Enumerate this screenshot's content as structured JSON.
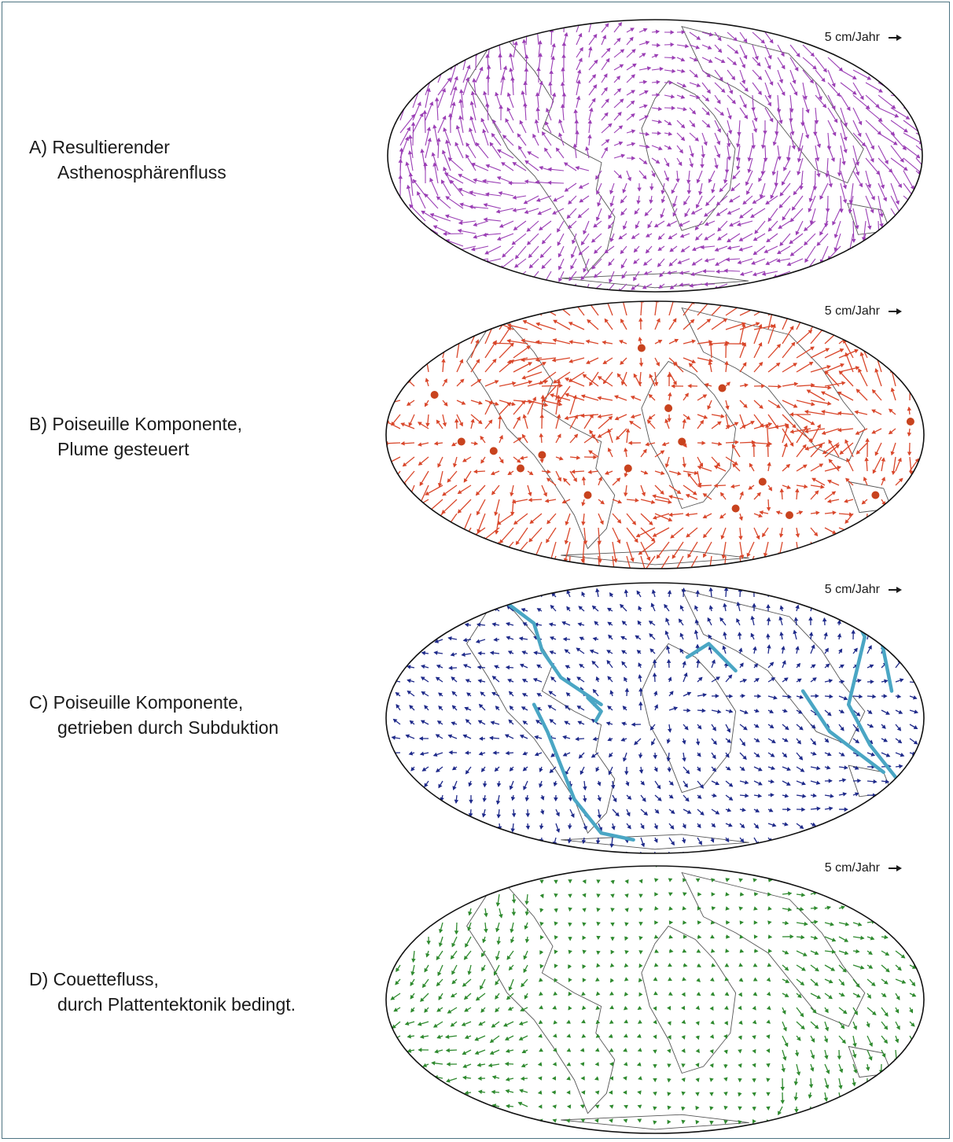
{
  "panels": [
    {
      "id": "A",
      "label_line1": "A) Resultierender",
      "label_line2": "Asthenosphärenfluss",
      "scale_text": "5 cm/Jahr",
      "arrow_color": "#9b3fb5",
      "flow": "resultant"
    },
    {
      "id": "B",
      "label_line1": "B) Poiseuille Komponente,",
      "label_line2": "Plume gesteuert",
      "scale_text": "5 cm/Jahr",
      "arrow_color": "#d9472b",
      "flow": "plume"
    },
    {
      "id": "C",
      "label_line1": "C) Poiseuille Komponente,",
      "label_line2": "getrieben durch Subduktion",
      "scale_text": "5 cm/Jahr",
      "arrow_color": "#1f2a8a",
      "flow": "subduction"
    },
    {
      "id": "D",
      "label_line1": "D) Couettefluss,",
      "label_line2": "durch Plattentektonik bedingt.",
      "scale_text": "5 cm/Jahr",
      "arrow_color": "#2f8a2f",
      "flow": "couette"
    }
  ],
  "colors": {
    "frame": "#4d7382",
    "coastline": "#555555",
    "subduction_zone": "#4aa6c4",
    "plume_marker": "#c8431e"
  }
}
